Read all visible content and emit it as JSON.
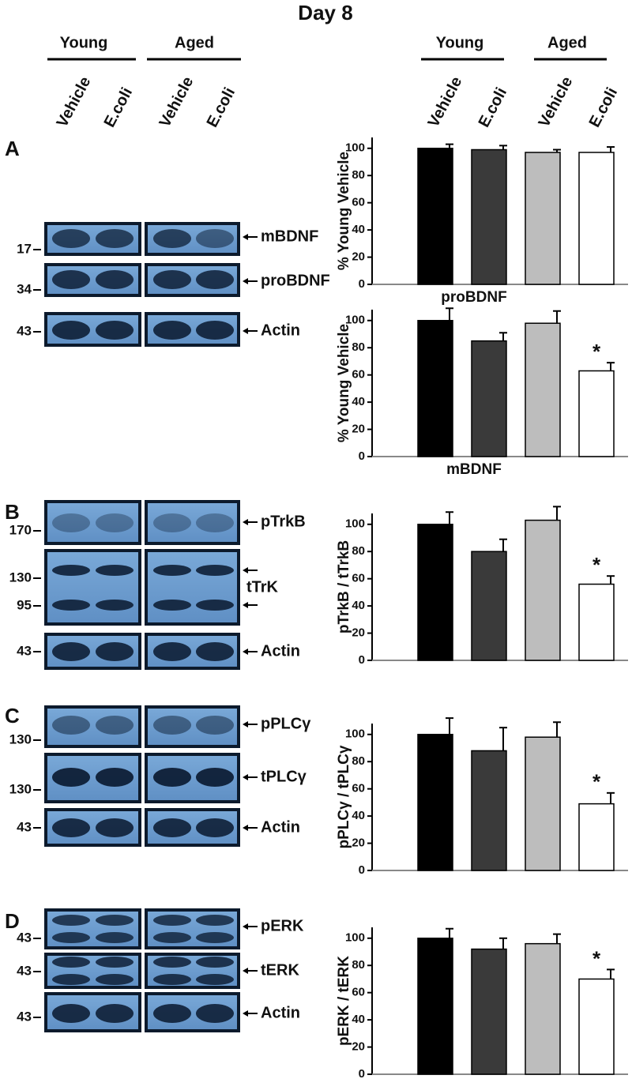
{
  "title": "Day 8",
  "blot_header": {
    "groups": [
      "Young",
      "Aged"
    ],
    "conditions": [
      "Vehicle",
      "E.coli",
      "Vehicle",
      "E.coli"
    ]
  },
  "chart_header": {
    "groups": [
      "Young",
      "Aged"
    ],
    "conditions": [
      "Vehicle",
      "E.coli",
      "Vehicle",
      "E.coli"
    ]
  },
  "panels": [
    {
      "letter": "A",
      "rows": [
        {
          "label": "mBDNF",
          "markers": [
            17
          ]
        },
        {
          "label": "proBDNF",
          "markers": [
            34
          ]
        },
        {
          "label": "Actin",
          "markers": [
            43
          ]
        }
      ]
    },
    {
      "letter": "B",
      "rows": [
        {
          "label": "pTrkB",
          "markers": [
            170
          ]
        },
        {
          "label": "tTrK",
          "markers": [
            130,
            95
          ]
        },
        {
          "label": "Actin",
          "markers": [
            43
          ]
        }
      ]
    },
    {
      "letter": "C",
      "rows": [
        {
          "label": "pPLCγ",
          "markers": [
            130
          ]
        },
        {
          "label": "tPLCγ",
          "markers": [
            130
          ]
        },
        {
          "label": "Actin",
          "markers": [
            43
          ]
        }
      ]
    },
    {
      "letter": "D",
      "rows": [
        {
          "label": "pERK",
          "markers": [
            43
          ]
        },
        {
          "label": "tERK",
          "markers": [
            43
          ]
        },
        {
          "label": "Actin",
          "markers": [
            43
          ]
        }
      ]
    }
  ],
  "chart_data": [
    {
      "type": "bar",
      "ylabel": "% Young Vehicle",
      "xlabel": "proBDNF",
      "values": [
        100,
        99,
        97,
        97
      ],
      "errors": [
        3,
        3,
        2,
        4
      ],
      "colors": [
        "#000000",
        "#3a3a3a",
        "#bdbdbd",
        "#ffffff"
      ],
      "ylim": [
        0,
        108
      ],
      "yticks": [
        0,
        20,
        40,
        60,
        80,
        100
      ]
    },
    {
      "type": "bar",
      "ylabel": "% Young Vehicle",
      "xlabel": "mBDNF",
      "values": [
        100,
        85,
        98,
        63
      ],
      "errors": [
        9,
        6,
        9,
        6
      ],
      "colors": [
        "#000000",
        "#3a3a3a",
        "#bdbdbd",
        "#ffffff"
      ],
      "ylim": [
        0,
        108
      ],
      "yticks": [
        0,
        20,
        40,
        60,
        80,
        100
      ],
      "annotations": [
        {
          "index": 3,
          "text": "*"
        }
      ]
    },
    {
      "type": "bar",
      "ylabel": "pTrkB / tTrkB",
      "values": [
        100,
        80,
        103,
        56
      ],
      "errors": [
        9,
        9,
        10,
        6
      ],
      "colors": [
        "#000000",
        "#3a3a3a",
        "#bdbdbd",
        "#ffffff"
      ],
      "ylim": [
        0,
        108
      ],
      "yticks": [
        0,
        20,
        40,
        60,
        80,
        100
      ],
      "annotations": [
        {
          "index": 3,
          "text": "*"
        }
      ]
    },
    {
      "type": "bar",
      "ylabel": "pPLCγ / tPLCγ",
      "values": [
        100,
        88,
        98,
        49
      ],
      "errors": [
        12,
        17,
        11,
        8
      ],
      "colors": [
        "#000000",
        "#3a3a3a",
        "#bdbdbd",
        "#ffffff"
      ],
      "ylim": [
        0,
        108
      ],
      "yticks": [
        0,
        20,
        40,
        60,
        80,
        100
      ],
      "annotations": [
        {
          "index": 3,
          "text": "*"
        }
      ]
    },
    {
      "type": "bar",
      "ylabel": "pERK / tERK",
      "values": [
        100,
        92,
        96,
        70
      ],
      "errors": [
        7,
        8,
        7,
        7
      ],
      "colors": [
        "#000000",
        "#3a3a3a",
        "#bdbdbd",
        "#ffffff"
      ],
      "ylim": [
        0,
        108
      ],
      "yticks": [
        0,
        20,
        40,
        60,
        80,
        100
      ],
      "annotations": [
        {
          "index": 3,
          "text": "*"
        }
      ]
    }
  ]
}
